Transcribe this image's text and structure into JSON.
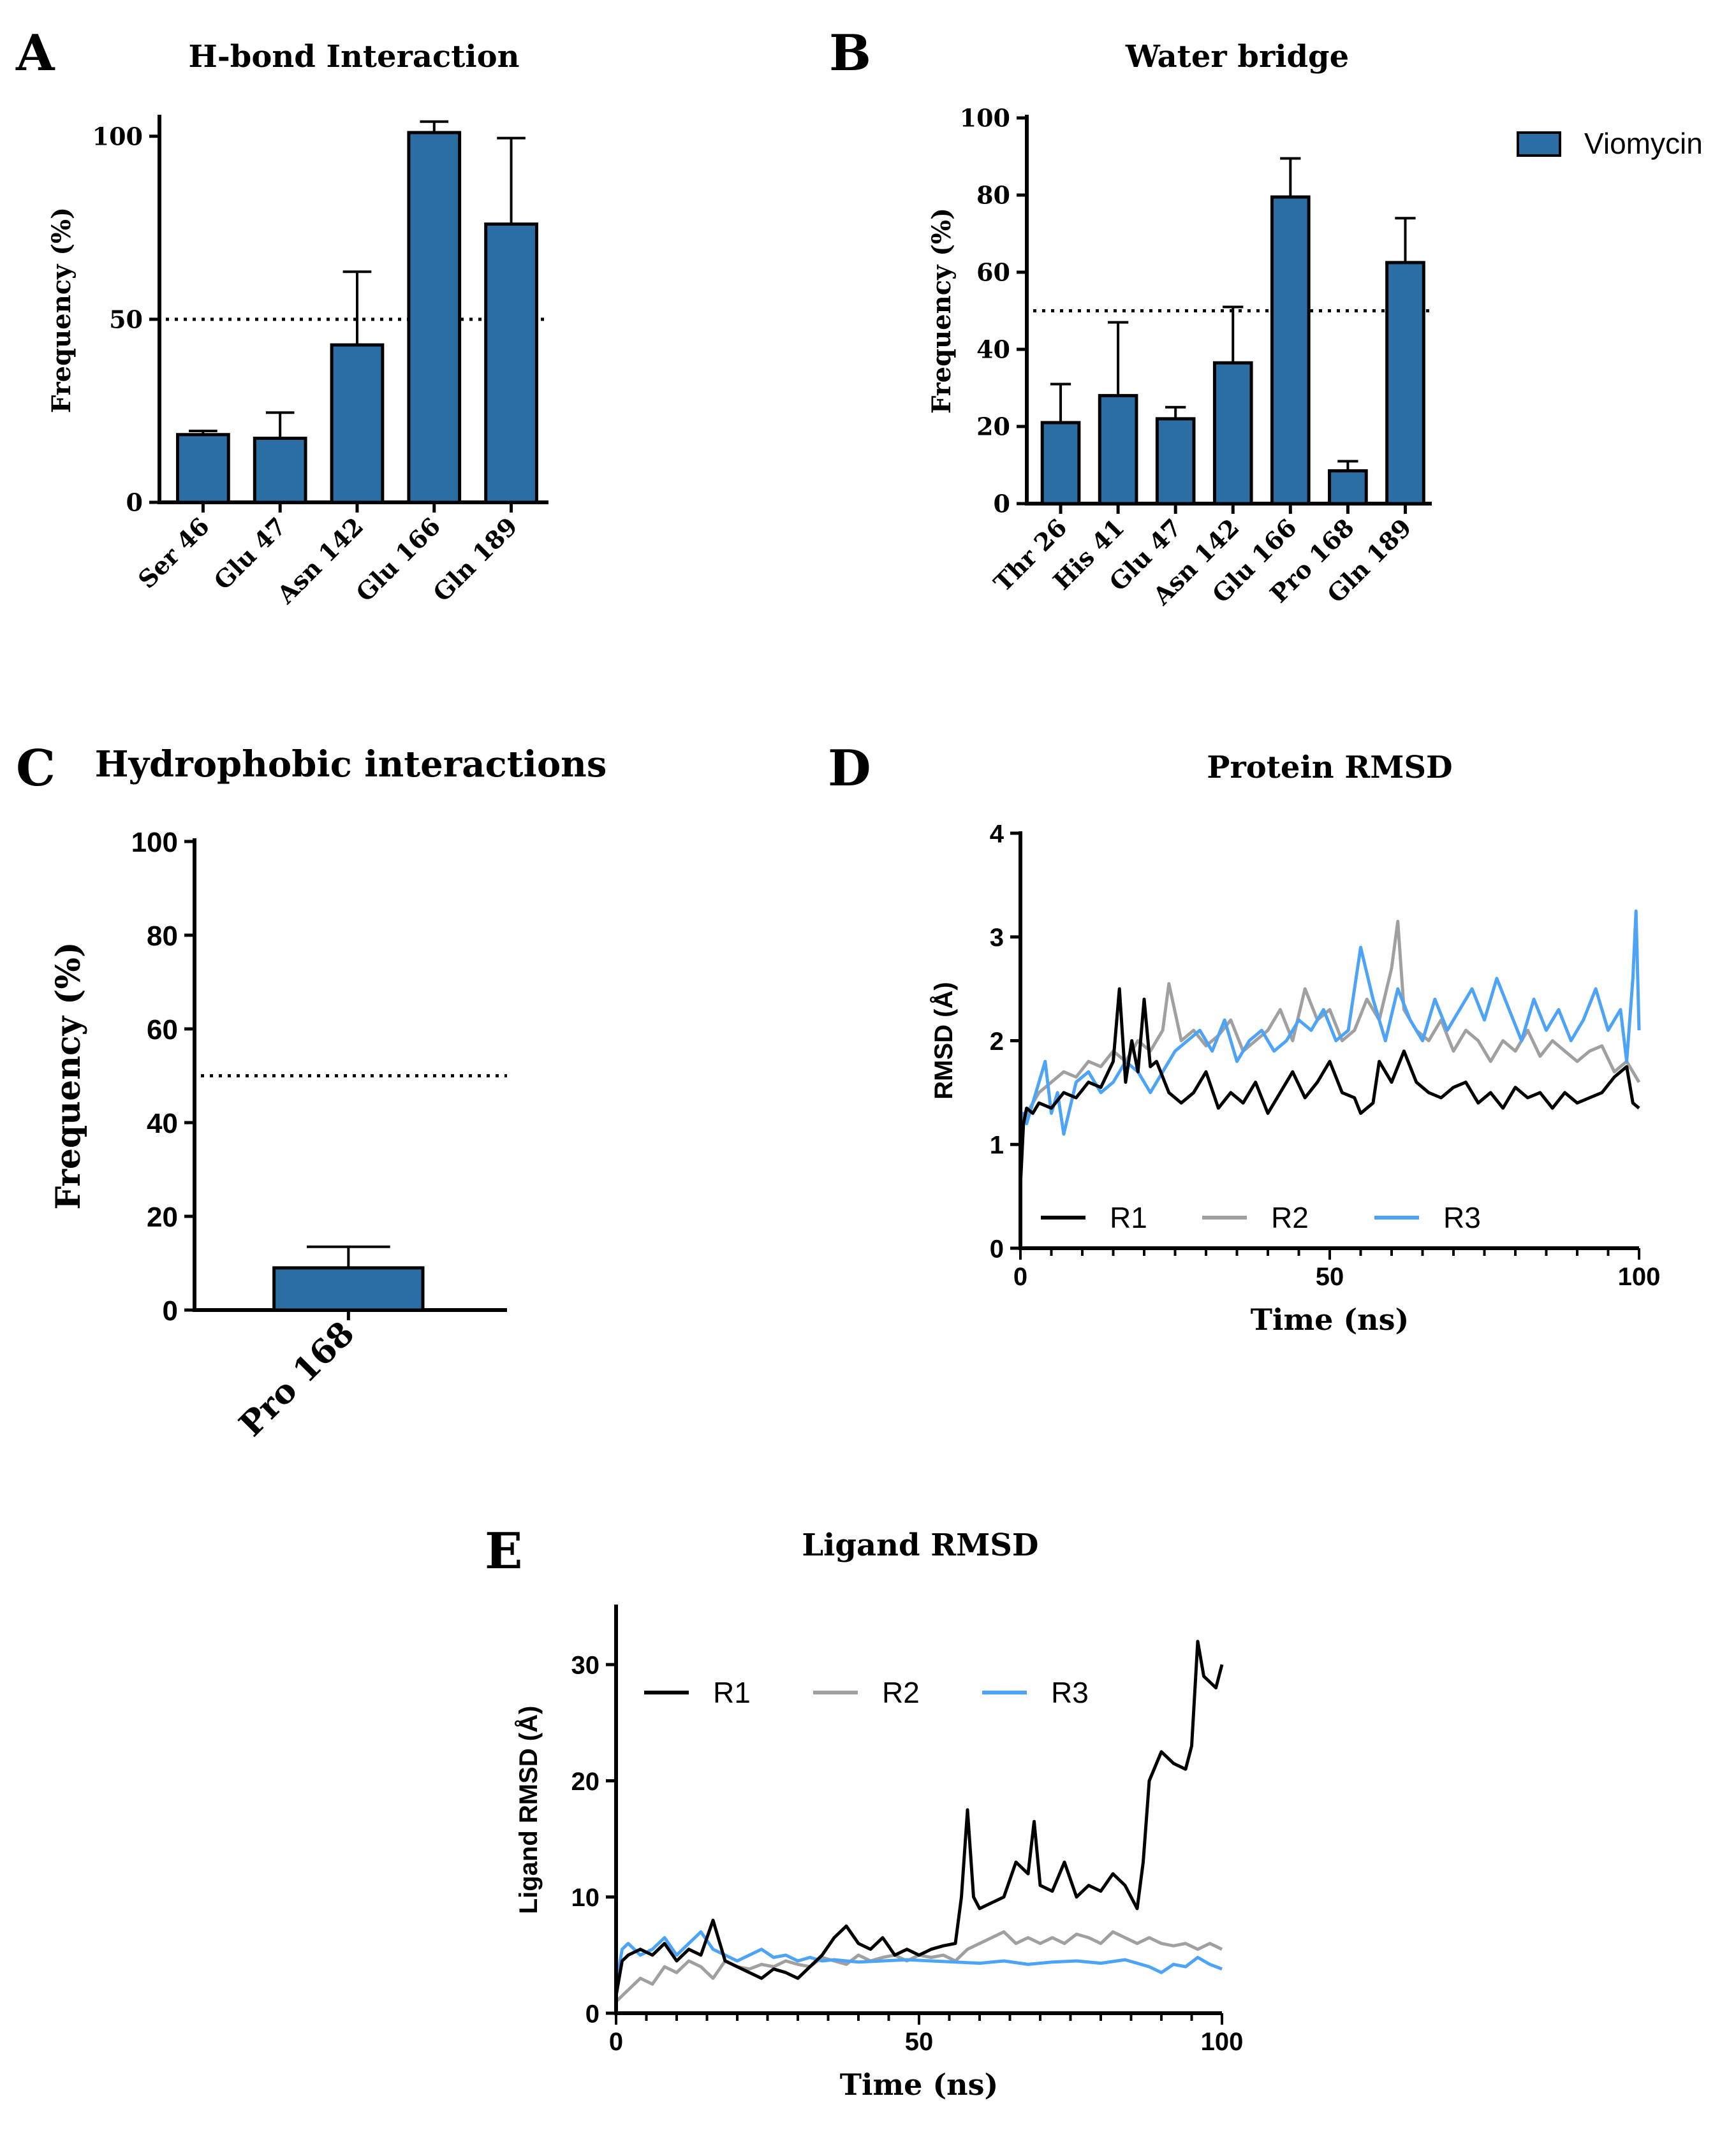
{
  "legend_global": {
    "label": "Viomycin",
    "color": "#2b6ea3"
  },
  "colors": {
    "bar": "#2b6ea3",
    "r1": "#000000",
    "r2": "#a0a0a0",
    "r3": "#4da3f5"
  },
  "chart_data": [
    {
      "id": "A",
      "type": "bar",
      "panel_label": "A",
      "title": "H-bond Interaction",
      "xlabel": "",
      "ylabel": "Frequency (%)",
      "categories": [
        "Ser 46",
        "Glu 47",
        "Asn 142",
        "Glu 166",
        "Gln 189"
      ],
      "values": [
        18.5,
        17.5,
        43,
        101,
        76
      ],
      "errors": [
        1,
        7,
        20,
        3,
        23.5
      ],
      "ylim": [
        0,
        105
      ],
      "yticks": [
        0,
        50,
        100
      ],
      "reference_line": 50
    },
    {
      "id": "B",
      "type": "bar",
      "panel_label": "B",
      "title": "Water bridge",
      "xlabel": "",
      "ylabel": "Frequency (%)",
      "categories": [
        "Thr 26",
        "His 41",
        "Glu 47",
        "Asn 142",
        "Glu 166",
        "Pro 168",
        "Gln 189"
      ],
      "values": [
        21,
        28,
        22,
        36.5,
        79.5,
        8.5,
        62.5
      ],
      "errors": [
        10,
        19,
        3,
        14.5,
        10,
        2.5,
        11.5
      ],
      "ylim": [
        0,
        100
      ],
      "yticks": [
        0,
        20,
        40,
        60,
        80,
        100
      ],
      "reference_line": 50,
      "legend": [
        "Viomycin"
      ]
    },
    {
      "id": "C",
      "type": "bar",
      "panel_label": "C",
      "title": "Hydrophobic interactions",
      "xlabel": "",
      "ylabel": "Frequency (%)",
      "categories": [
        "Pro 168"
      ],
      "values": [
        9
      ],
      "errors": [
        4.5
      ],
      "ylim": [
        0,
        100
      ],
      "yticks": [
        0,
        20,
        40,
        60,
        80,
        100
      ],
      "reference_line": 50
    },
    {
      "id": "D",
      "type": "line",
      "panel_label": "D",
      "title": "Protein RMSD",
      "xlabel": "Time (ns)",
      "ylabel": "RMSD (Å)",
      "xlim": [
        0,
        100
      ],
      "ylim": [
        0,
        4
      ],
      "xticks": [
        0,
        50,
        100
      ],
      "yticks": [
        0,
        1,
        2,
        3,
        4
      ],
      "legend": [
        "R1",
        "R2",
        "R3"
      ],
      "series": [
        {
          "name": "R1",
          "x": [
            0,
            0.5,
            1,
            2,
            3,
            5,
            7,
            9,
            11,
            13,
            15,
            16,
            17,
            18,
            19,
            20,
            21,
            22,
            24,
            26,
            28,
            30,
            32,
            34,
            36,
            38,
            40,
            42,
            44,
            46,
            48,
            50,
            52,
            54,
            55,
            56,
            57,
            58,
            60,
            62,
            64,
            66,
            68,
            70,
            72,
            74,
            76,
            78,
            80,
            82,
            84,
            86,
            88,
            90,
            92,
            94,
            96,
            98,
            99,
            100
          ],
          "y": [
            0.6,
            1.2,
            1.35,
            1.3,
            1.4,
            1.35,
            1.5,
            1.45,
            1.6,
            1.55,
            1.8,
            2.5,
            1.6,
            2.0,
            1.7,
            2.4,
            1.75,
            1.8,
            1.5,
            1.4,
            1.5,
            1.7,
            1.35,
            1.5,
            1.4,
            1.6,
            1.3,
            1.5,
            1.7,
            1.45,
            1.6,
            1.8,
            1.5,
            1.45,
            1.3,
            1.35,
            1.4,
            1.8,
            1.6,
            1.9,
            1.6,
            1.5,
            1.45,
            1.55,
            1.6,
            1.4,
            1.5,
            1.35,
            1.55,
            1.45,
            1.5,
            1.35,
            1.5,
            1.4,
            1.45,
            1.5,
            1.65,
            1.75,
            1.4,
            1.35
          ]
        },
        {
          "name": "R2",
          "x": [
            0,
            0.5,
            1,
            2,
            3,
            5,
            7,
            9,
            11,
            13,
            15,
            17,
            19,
            21,
            23,
            24,
            26,
            28,
            30,
            32,
            34,
            36,
            38,
            40,
            42,
            44,
            46,
            48,
            50,
            52,
            54,
            56,
            58,
            60,
            61,
            62,
            64,
            66,
            68,
            70,
            72,
            74,
            76,
            78,
            80,
            82,
            84,
            86,
            88,
            90,
            92,
            94,
            96,
            98,
            100
          ],
          "y": [
            0.7,
            1.2,
            1.3,
            1.4,
            1.5,
            1.6,
            1.7,
            1.65,
            1.8,
            1.75,
            1.9,
            1.8,
            2.0,
            1.9,
            2.1,
            2.55,
            2.0,
            2.1,
            1.95,
            2.05,
            2.2,
            1.9,
            2.0,
            2.1,
            2.3,
            2.0,
            2.5,
            2.2,
            2.3,
            2.0,
            2.1,
            2.4,
            2.2,
            2.7,
            3.15,
            2.3,
            2.1,
            2.0,
            2.2,
            1.9,
            2.1,
            2.0,
            1.8,
            2.0,
            1.9,
            2.1,
            1.85,
            2.0,
            1.9,
            1.8,
            1.9,
            1.95,
            1.7,
            1.8,
            1.6
          ]
        },
        {
          "name": "R3",
          "x": [
            0,
            0.5,
            1,
            2,
            3,
            4,
            5,
            6,
            7,
            9,
            11,
            13,
            15,
            17,
            19,
            21,
            23,
            25,
            27,
            29,
            31,
            33,
            35,
            37,
            39,
            41,
            43,
            45,
            47,
            49,
            51,
            53,
            55,
            57,
            59,
            61,
            63,
            65,
            67,
            69,
            71,
            73,
            75,
            77,
            79,
            81,
            83,
            85,
            87,
            89,
            91,
            93,
            95,
            97,
            98,
            99,
            99.5,
            100
          ],
          "y": [
            0.8,
            1.3,
            1.2,
            1.4,
            1.6,
            1.8,
            1.3,
            1.5,
            1.1,
            1.6,
            1.7,
            1.5,
            1.6,
            1.8,
            1.7,
            1.5,
            1.7,
            1.9,
            2.0,
            2.1,
            1.9,
            2.2,
            1.8,
            2.0,
            2.1,
            1.9,
            2.0,
            2.2,
            2.1,
            2.3,
            2.0,
            2.1,
            2.9,
            2.4,
            2.0,
            2.5,
            2.2,
            2.0,
            2.4,
            2.1,
            2.3,
            2.5,
            2.2,
            2.6,
            2.3,
            2.0,
            2.4,
            2.1,
            2.3,
            2.0,
            2.2,
            2.5,
            2.1,
            2.3,
            1.8,
            2.6,
            3.25,
            2.1
          ]
        }
      ]
    },
    {
      "id": "E",
      "type": "line",
      "panel_label": "E",
      "title": "Ligand RMSD",
      "xlabel": "Time (ns)",
      "ylabel": "Ligand RMSD (Å)",
      "xlim": [
        0,
        100
      ],
      "ylim": [
        0,
        35
      ],
      "xticks": [
        0,
        50,
        100
      ],
      "yticks": [
        0,
        10,
        20,
        30
      ],
      "legend": [
        "R1",
        "R2",
        "R3"
      ],
      "series": [
        {
          "name": "R1",
          "x": [
            0,
            1,
            2,
            4,
            6,
            8,
            10,
            12,
            14,
            16,
            18,
            20,
            22,
            24,
            26,
            28,
            30,
            32,
            34,
            36,
            38,
            40,
            42,
            44,
            46,
            48,
            50,
            52,
            54,
            56,
            57,
            58,
            59,
            60,
            62,
            64,
            66,
            68,
            69,
            70,
            72,
            74,
            76,
            78,
            80,
            82,
            84,
            86,
            87,
            88,
            90,
            92,
            94,
            95,
            96,
            97,
            98,
            99,
            100
          ],
          "y": [
            1.5,
            4.5,
            5.0,
            5.5,
            5.0,
            6.0,
            4.5,
            5.5,
            5.0,
            8.0,
            4.5,
            4.0,
            3.5,
            3.0,
            3.8,
            3.5,
            3.0,
            4.0,
            5.0,
            6.5,
            7.5,
            6.0,
            5.5,
            6.5,
            5.0,
            5.5,
            5.0,
            5.5,
            5.8,
            6.0,
            10.0,
            17.5,
            10.0,
            9.0,
            9.5,
            10.0,
            13.0,
            12.0,
            16.5,
            11.0,
            10.5,
            13.0,
            10.0,
            11.0,
            10.5,
            12.0,
            11.0,
            9.0,
            13.0,
            20.0,
            22.5,
            21.5,
            21.0,
            23.0,
            32.0,
            29.0,
            28.5,
            28.0,
            30.0
          ]
        },
        {
          "name": "R2",
          "x": [
            0,
            2,
            4,
            6,
            8,
            10,
            12,
            14,
            16,
            18,
            20,
            22,
            24,
            26,
            28,
            30,
            32,
            34,
            36,
            38,
            40,
            42,
            44,
            46,
            48,
            50,
            52,
            54,
            56,
            58,
            60,
            62,
            64,
            66,
            68,
            70,
            72,
            74,
            76,
            78,
            80,
            82,
            84,
            86,
            88,
            90,
            92,
            94,
            96,
            98,
            100
          ],
          "y": [
            1.0,
            2.0,
            3.0,
            2.5,
            4.0,
            3.5,
            4.5,
            4.0,
            3.0,
            4.5,
            4.0,
            3.8,
            4.2,
            4.0,
            4.5,
            4.2,
            4.0,
            4.8,
            4.5,
            4.2,
            5.0,
            4.5,
            4.8,
            5.0,
            4.5,
            5.0,
            4.8,
            5.0,
            4.5,
            5.5,
            6.0,
            6.5,
            7.0,
            6.0,
            6.5,
            6.0,
            6.5,
            6.0,
            6.8,
            6.5,
            6.0,
            7.0,
            6.5,
            6.0,
            6.5,
            6.0,
            5.8,
            6.0,
            5.5,
            6.0,
            5.5
          ]
        },
        {
          "name": "R3",
          "x": [
            0,
            1,
            2,
            4,
            6,
            8,
            10,
            12,
            14,
            16,
            18,
            20,
            22,
            24,
            26,
            28,
            30,
            32,
            34,
            36,
            38,
            40,
            44,
            48,
            52,
            56,
            60,
            64,
            68,
            72,
            76,
            80,
            84,
            88,
            90,
            92,
            94,
            96,
            98,
            100
          ],
          "y": [
            2.5,
            5.5,
            6.0,
            5.0,
            5.5,
            6.5,
            5.0,
            6.0,
            7.0,
            5.5,
            5.0,
            4.5,
            5.0,
            5.5,
            4.8,
            5.0,
            4.5,
            4.8,
            4.5,
            4.6,
            4.5,
            4.4,
            4.5,
            4.6,
            4.5,
            4.4,
            4.3,
            4.5,
            4.2,
            4.4,
            4.5,
            4.3,
            4.6,
            4.0,
            3.5,
            4.2,
            4.0,
            4.8,
            4.2,
            3.8
          ]
        }
      ]
    }
  ]
}
